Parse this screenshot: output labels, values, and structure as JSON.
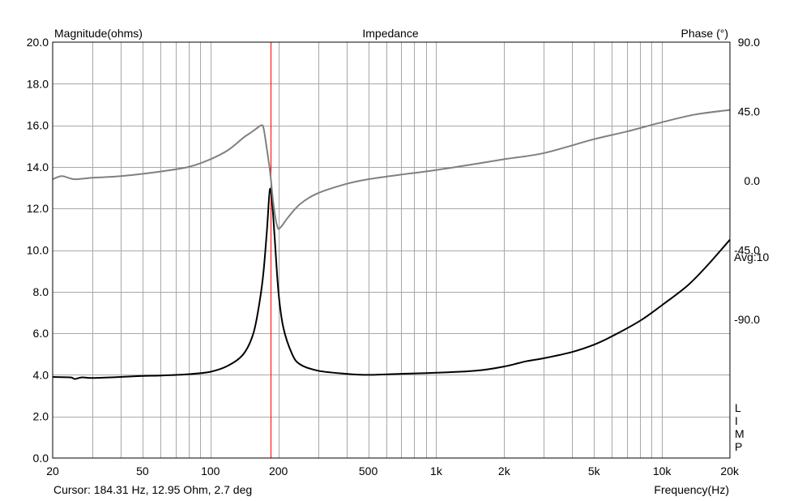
{
  "chart_data": {
    "type": "line",
    "title": "Impedance",
    "left_axis_label": "Magnitude(ohms)",
    "right_axis_label": "Phase (°)",
    "xlabel": "Frequency(Hz)",
    "x_scale": "log",
    "xlim": [
      20,
      20000
    ],
    "ylim": [
      0,
      20
    ],
    "y2lim": [
      -180,
      90
    ],
    "grid": true,
    "x_ticks": [
      {
        "value": 20,
        "label": "20"
      },
      {
        "value": 50,
        "label": "50"
      },
      {
        "value": 100,
        "label": "100"
      },
      {
        "value": 200,
        "label": "200"
      },
      {
        "value": 500,
        "label": "500"
      },
      {
        "value": 1000,
        "label": "1k"
      },
      {
        "value": 2000,
        "label": "2k"
      },
      {
        "value": 5000,
        "label": "5k"
      },
      {
        "value": 10000,
        "label": "10k"
      },
      {
        "value": 20000,
        "label": "20k"
      }
    ],
    "y_ticks": [
      {
        "value": 0,
        "label": "0.0"
      },
      {
        "value": 2,
        "label": "2.0"
      },
      {
        "value": 4,
        "label": "4.0"
      },
      {
        "value": 6,
        "label": "6.0"
      },
      {
        "value": 8,
        "label": "8.0"
      },
      {
        "value": 10,
        "label": "10.0"
      },
      {
        "value": 12,
        "label": "12.0"
      },
      {
        "value": 14,
        "label": "14.0"
      },
      {
        "value": 16,
        "label": "16.0"
      },
      {
        "value": 18,
        "label": "18.0"
      },
      {
        "value": 20,
        "label": "20.0"
      }
    ],
    "y2_ticks": [
      {
        "value": 90,
        "label": "90.0"
      },
      {
        "value": 45,
        "label": "45.0"
      },
      {
        "value": 0,
        "label": "0.0"
      },
      {
        "value": -45,
        "label": "-45.0"
      },
      {
        "value": -90,
        "label": "-90.0"
      }
    ],
    "right_annotation": "Avg:10",
    "legend_letters": [
      "L",
      "I",
      "M",
      "P"
    ],
    "cursor": {
      "frequency_hz": 184.31,
      "text": "Cursor: 184.31 Hz, 12.95 Ohm, 2.7 deg",
      "color": "#ff0000"
    },
    "series": [
      {
        "name": "",
        "axis": "left",
        "color": "#000000",
        "points": [
          [
            20,
            3.9
          ],
          [
            24,
            3.88
          ],
          [
            25,
            3.8
          ],
          [
            27,
            3.88
          ],
          [
            30,
            3.85
          ],
          [
            40,
            3.9
          ],
          [
            50,
            3.95
          ],
          [
            60,
            3.97
          ],
          [
            80,
            4.03
          ],
          [
            100,
            4.15
          ],
          [
            120,
            4.45
          ],
          [
            140,
            5.0
          ],
          [
            155,
            6.0
          ],
          [
            165,
            7.5
          ],
          [
            172,
            9.0
          ],
          [
            178,
            11.0
          ],
          [
            182,
            12.6
          ],
          [
            184.3,
            12.95
          ],
          [
            187,
            12.5
          ],
          [
            192,
            10.8
          ],
          [
            200,
            8.0
          ],
          [
            210,
            6.3
          ],
          [
            230,
            5.0
          ],
          [
            250,
            4.5
          ],
          [
            300,
            4.2
          ],
          [
            400,
            4.05
          ],
          [
            500,
            4.0
          ],
          [
            700,
            4.05
          ],
          [
            1000,
            4.1
          ],
          [
            1500,
            4.2
          ],
          [
            2000,
            4.4
          ],
          [
            2500,
            4.65
          ],
          [
            3000,
            4.8
          ],
          [
            4000,
            5.1
          ],
          [
            5000,
            5.45
          ],
          [
            6000,
            5.85
          ],
          [
            8000,
            6.6
          ],
          [
            10000,
            7.35
          ],
          [
            13000,
            8.3
          ],
          [
            16000,
            9.3
          ],
          [
            20000,
            10.5
          ]
        ]
      },
      {
        "name": "",
        "axis": "right",
        "color": "#808080",
        "points": [
          [
            20,
            1
          ],
          [
            22,
            3
          ],
          [
            25,
            1
          ],
          [
            30,
            2
          ],
          [
            40,
            3
          ],
          [
            60,
            6
          ],
          [
            80,
            9
          ],
          [
            100,
            14
          ],
          [
            120,
            20
          ],
          [
            140,
            28
          ],
          [
            150,
            31
          ],
          [
            160,
            34
          ],
          [
            168,
            36
          ],
          [
            172,
            34
          ],
          [
            178,
            20
          ],
          [
            184,
            5
          ],
          [
            190,
            -15
          ],
          [
            198,
            -30
          ],
          [
            205,
            -30
          ],
          [
            220,
            -24
          ],
          [
            250,
            -15
          ],
          [
            300,
            -8
          ],
          [
            400,
            -2
          ],
          [
            500,
            1
          ],
          [
            700,
            4
          ],
          [
            1000,
            7
          ],
          [
            1500,
            11
          ],
          [
            2000,
            14
          ],
          [
            3000,
            18
          ],
          [
            5000,
            27
          ],
          [
            7000,
            32
          ],
          [
            10000,
            38
          ],
          [
            14000,
            43
          ],
          [
            20000,
            46
          ]
        ]
      }
    ]
  }
}
